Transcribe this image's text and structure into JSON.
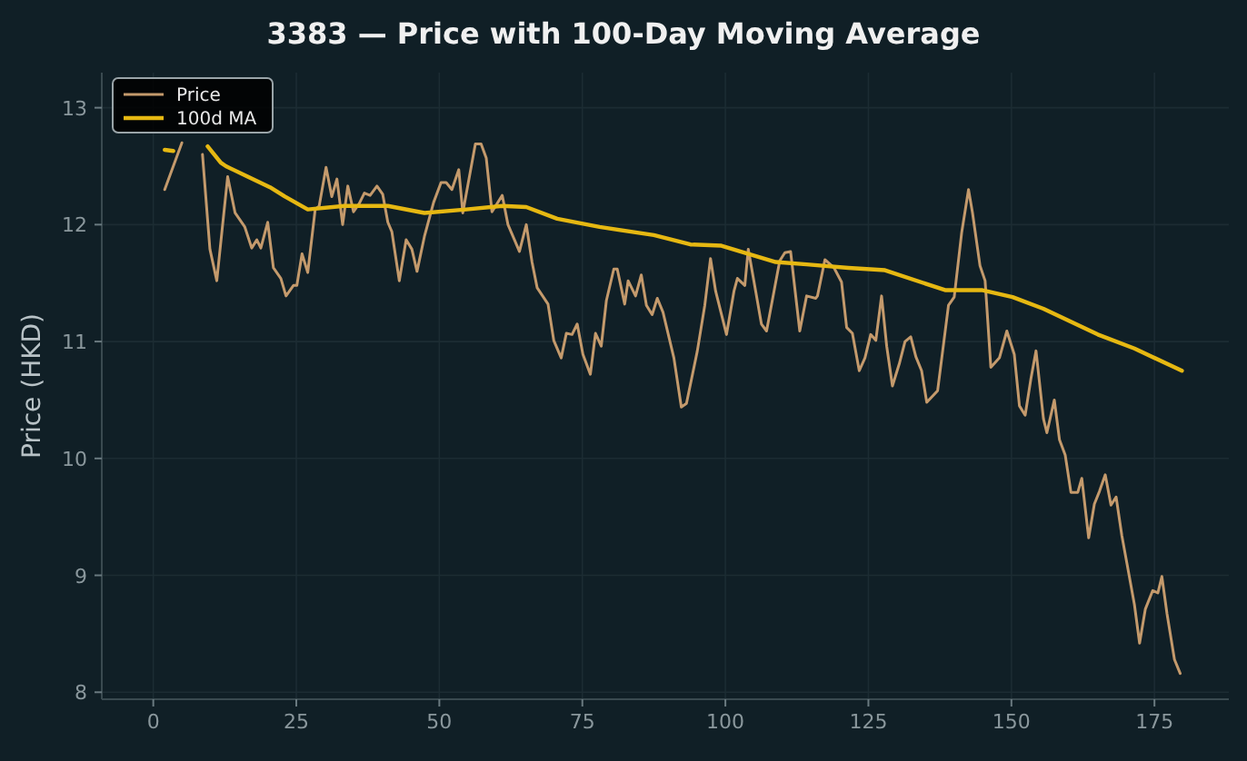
{
  "chart_data": {
    "type": "line",
    "title": "3383 — Price with 100-Day Moving Average",
    "ylabel": "Price (HKD)",
    "xlim": [
      -9,
      188
    ],
    "xticks": [
      0,
      25,
      50,
      75,
      100,
      125,
      150,
      175
    ],
    "ylim": [
      7.94,
      13.3
    ],
    "yticks": [
      8,
      9,
      10,
      11,
      12,
      13
    ],
    "grid": true,
    "legend": "top left",
    "marker": "none",
    "line_style": "solid",
    "series": [
      {
        "name": "Price",
        "color": "#c49a6c",
        "x": [
          2,
          5,
          7.6,
          8.6,
          9.9,
          11.1,
          13,
          14.3,
          16,
          17.2,
          18.1,
          18.8,
          20,
          21,
          22.3,
          23.2,
          24.5,
          25.1,
          26,
          27,
          28.3,
          29,
          30.2,
          31.2,
          32.1,
          33.1,
          34,
          35,
          36,
          36.9,
          37.9,
          39.1,
          40.1,
          41,
          41.7,
          43,
          44.2,
          45.2,
          46.1,
          47.4,
          49,
          50.3,
          51.2,
          52.2,
          53.4,
          54.1,
          56.3,
          57.3,
          58.2,
          59.2,
          61,
          62,
          64,
          65.2,
          66.2,
          67.1,
          69,
          70,
          71.3,
          72.2,
          73.2,
          74.1,
          75.1,
          76.4,
          77.3,
          78.3,
          79.2,
          80.5,
          81.1,
          82.4,
          83,
          84.3,
          85.3,
          86.2,
          87.2,
          88.1,
          89.1,
          91,
          92.3,
          93.2,
          95.1,
          96.4,
          97.4,
          98.3,
          100.2,
          101.5,
          102.1,
          103.4,
          104,
          105.3,
          106.3,
          107.2,
          109.5,
          110.4,
          111.4,
          113,
          114.2,
          115.8,
          116.1,
          117.4,
          119,
          120.3,
          121.2,
          122.2,
          123.4,
          124.4,
          125.4,
          126.3,
          127.3,
          128.2,
          129.2,
          130.4,
          131.4,
          132.4,
          133.3,
          134.3,
          135.2,
          137.1,
          139,
          140,
          141.3,
          142.5,
          143.2,
          144.5,
          145.4,
          146.4,
          147.9,
          149.2,
          150.5,
          151.4,
          152.4,
          153.4,
          154.3,
          155.6,
          156.2,
          157.5,
          158.4,
          159.4,
          160.4,
          161.6,
          162.3,
          163.5,
          164.5,
          165.4,
          166.4,
          167.4,
          168.3,
          169.3,
          170.2,
          171.5,
          172.4,
          173.4,
          174.7,
          175.6,
          176.3,
          177.2,
          178.5,
          179.5
        ],
        "values": [
          12.3,
          12.7,
          null,
          12.6,
          11.79,
          11.52,
          12.41,
          12.1,
          11.98,
          11.8,
          11.87,
          11.8,
          12.02,
          11.63,
          11.54,
          11.39,
          11.48,
          11.48,
          11.75,
          11.59,
          12.13,
          12.16,
          12.49,
          12.24,
          12.39,
          12.0,
          12.33,
          12.11,
          12.18,
          12.27,
          12.25,
          12.33,
          12.26,
          12.02,
          11.94,
          11.52,
          11.87,
          11.79,
          11.6,
          11.9,
          12.19,
          12.36,
          12.36,
          12.3,
          12.47,
          12.1,
          12.69,
          12.69,
          12.57,
          12.11,
          12.25,
          12.0,
          11.77,
          12.0,
          11.68,
          11.46,
          11.32,
          11.01,
          10.86,
          11.07,
          11.06,
          11.15,
          10.89,
          10.72,
          11.07,
          10.96,
          11.35,
          11.62,
          11.62,
          11.32,
          11.52,
          11.39,
          11.57,
          11.31,
          11.23,
          11.37,
          11.25,
          10.86,
          10.44,
          10.47,
          10.92,
          11.31,
          11.71,
          11.43,
          11.06,
          11.43,
          11.54,
          11.48,
          11.79,
          11.43,
          11.15,
          11.09,
          11.69,
          11.76,
          11.77,
          11.09,
          11.39,
          11.37,
          11.39,
          11.7,
          11.63,
          11.51,
          11.12,
          11.07,
          10.75,
          10.86,
          11.06,
          11.01,
          11.39,
          10.96,
          10.62,
          10.81,
          11.0,
          11.04,
          10.87,
          10.75,
          10.48,
          10.58,
          11.31,
          11.38,
          11.93,
          12.3,
          12.1,
          11.65,
          11.52,
          10.78,
          10.86,
          11.09,
          10.89,
          10.45,
          10.37,
          10.68,
          10.92,
          10.34,
          10.22,
          10.5,
          10.16,
          10.03,
          9.71,
          9.71,
          9.83,
          9.32,
          9.61,
          9.72,
          9.86,
          9.6,
          9.67,
          9.34,
          9.1,
          8.75,
          8.42,
          8.71,
          8.87,
          8.85,
          8.99,
          8.67,
          8.28,
          8.16
        ]
      },
      {
        "name": "100d MA",
        "color": "#e6b812",
        "x": [
          2,
          3.5,
          4.8,
          7,
          9.5,
          11.8,
          12.7,
          16.5,
          20.4,
          23,
          27,
          33.4,
          41,
          47.4,
          54.7,
          61,
          65.2,
          70.6,
          78,
          87.5,
          93.9,
          99.3,
          104.7,
          108.8,
          114.2,
          121.5,
          127.9,
          138.4,
          144.8,
          150.2,
          155.6,
          165.1,
          171.5,
          179.8
        ],
        "values": [
          12.64,
          12.63,
          null,
          null,
          12.67,
          12.53,
          12.5,
          12.41,
          12.32,
          12.24,
          12.13,
          12.16,
          12.16,
          12.1,
          12.13,
          12.16,
          12.15,
          12.05,
          11.98,
          11.91,
          11.83,
          11.82,
          11.74,
          11.68,
          11.66,
          11.63,
          11.61,
          11.44,
          11.44,
          11.38,
          11.28,
          11.06,
          10.94,
          10.75
        ]
      }
    ]
  }
}
